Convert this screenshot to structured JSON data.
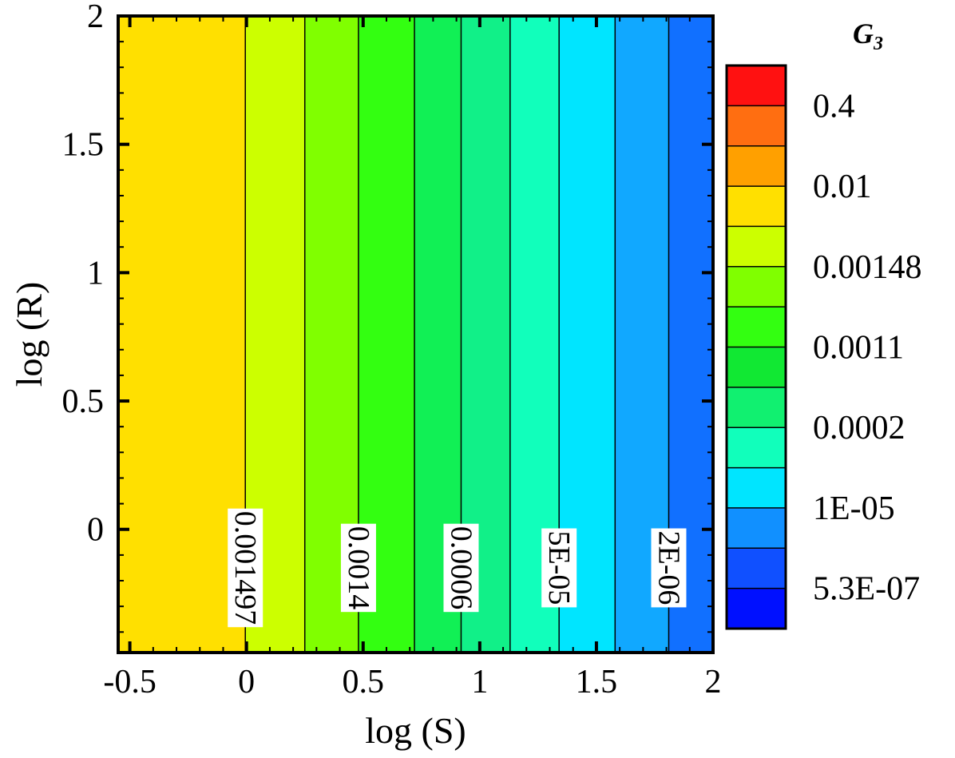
{
  "chart_data": {
    "type": "heatmap",
    "xlabel": "log (S)",
    "ylabel": "log (R)",
    "xlim": [
      -0.55,
      2
    ],
    "ylim": [
      -0.48,
      2
    ],
    "x_ticks": [
      {
        "value": -0.5,
        "label": "-0.5"
      },
      {
        "value": 0,
        "label": "0"
      },
      {
        "value": 0.5,
        "label": "0.5"
      },
      {
        "value": 1,
        "label": "1"
      },
      {
        "value": 1.5,
        "label": "1.5"
      },
      {
        "value": 2,
        "label": "2"
      }
    ],
    "y_ticks": [
      {
        "value": 0,
        "label": "0"
      },
      {
        "value": 0.5,
        "label": "0.5"
      },
      {
        "value": 1,
        "label": "1"
      },
      {
        "value": 1.5,
        "label": "1.5"
      },
      {
        "value": 2,
        "label": "2"
      }
    ],
    "bands": [
      {
        "x_start": -0.55,
        "x_end": -0.005,
        "color": "#FFE000"
      },
      {
        "x_start": -0.005,
        "x_end": 0.25,
        "color": "#CCFF00"
      },
      {
        "x_start": 0.25,
        "x_end": 0.48,
        "color": "#80FF00"
      },
      {
        "x_start": 0.48,
        "x_end": 0.72,
        "color": "#33FF11"
      },
      {
        "x_start": 0.72,
        "x_end": 0.92,
        "color": "#11F055"
      },
      {
        "x_start": 0.92,
        "x_end": 1.13,
        "color": "#11F088"
      },
      {
        "x_start": 1.13,
        "x_end": 1.34,
        "color": "#11FFBB"
      },
      {
        "x_start": 1.34,
        "x_end": 1.58,
        "color": "#00E5FF"
      },
      {
        "x_start": 1.58,
        "x_end": 1.81,
        "color": "#11A8FF"
      },
      {
        "x_start": 1.81,
        "x_end": 2.0,
        "color": "#1170FF"
      }
    ],
    "contour_labels": [
      {
        "x": -0.005,
        "y": -0.15,
        "text": "0.001497"
      },
      {
        "x": 0.48,
        "y": -0.15,
        "text": "0.0014"
      },
      {
        "x": 0.92,
        "y": -0.15,
        "text": "0.0006"
      },
      {
        "x": 1.34,
        "y": -0.15,
        "text": "5E-05"
      },
      {
        "x": 1.81,
        "y": -0.15,
        "text": "2E-06"
      }
    ],
    "legend": {
      "title": "G",
      "title_subscript": "3",
      "colors": [
        "#0010FF",
        "#1050FF",
        "#1190FF",
        "#00E5FF",
        "#11FFBB",
        "#11F070",
        "#11E833",
        "#33FF11",
        "#80FF00",
        "#CCFF00",
        "#FFE000",
        "#FFA000",
        "#FF6E11",
        "#FF1111"
      ],
      "labels": [
        {
          "after_index": 0,
          "text": "5.3E-07"
        },
        {
          "after_index": 2,
          "text": "1E-05"
        },
        {
          "after_index": 4,
          "text": "0.0002"
        },
        {
          "after_index": 6,
          "text": "0.0011"
        },
        {
          "after_index": 8,
          "text": "0.00148"
        },
        {
          "after_index": 10,
          "text": "0.01"
        },
        {
          "after_index": 12,
          "text": "0.4"
        }
      ]
    }
  }
}
